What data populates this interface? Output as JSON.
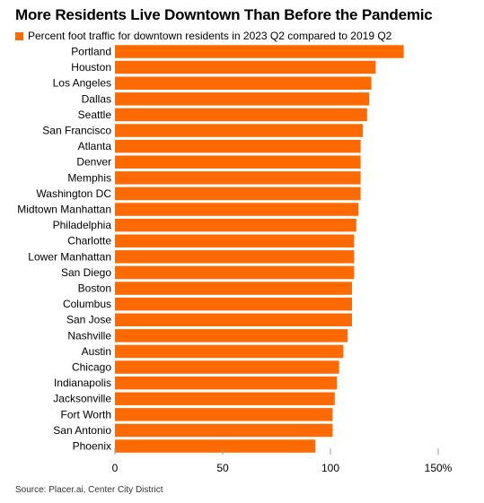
{
  "title": "More Residents Live Downtown Than Before the Pandemic",
  "source": "Source: Placer.ai, Center City District",
  "colors": {
    "bar": "#ff6a00",
    "tick": "#999999"
  },
  "chart_data": {
    "type": "bar",
    "orientation": "horizontal",
    "legend": "top-left",
    "grid": false,
    "series": [
      {
        "name": "Percent foot traffic for downtown residents in 2023 Q2 compared to 2019 Q2",
        "values": [
          134,
          121,
          119,
          118,
          117,
          115,
          114,
          114,
          114,
          114,
          113,
          112,
          111,
          111,
          111,
          110,
          110,
          110,
          108,
          106,
          104,
          103,
          102,
          101,
          101,
          93
        ]
      }
    ],
    "categories": [
      "Portland",
      "Houston",
      "Los Angeles",
      "Dallas",
      "Seattle",
      "San Francisco",
      "Atlanta",
      "Denver",
      "Memphis",
      "Washington DC",
      "Midtown Manhattan",
      "Philadelphia",
      "Charlotte",
      "Lower Manhattan",
      "San Diego",
      "Boston",
      "Columbus",
      "San Jose",
      "Nashville",
      "Austin",
      "Chicago",
      "Indianapolis",
      "Jacksonville",
      "Fort Worth",
      "San Antonio",
      "Phoenix"
    ],
    "xlim": [
      0,
      150
    ],
    "xticks": [
      0,
      50,
      100,
      150
    ],
    "xtick_labels": [
      "0",
      "50",
      "100",
      "150%"
    ]
  }
}
